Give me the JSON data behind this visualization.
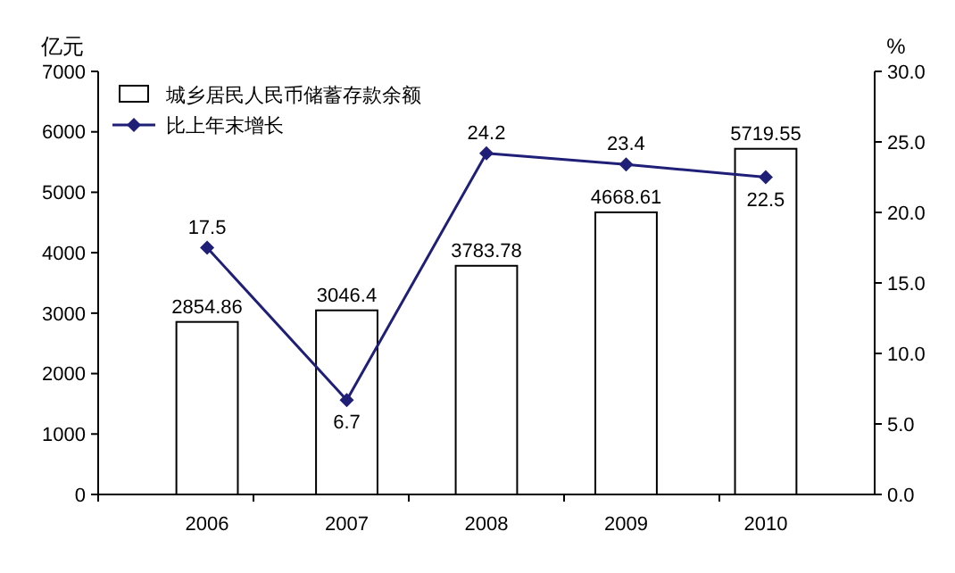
{
  "chart_data": {
    "type": "bar",
    "ylabel": "亿元",
    "y2label": "%",
    "categories": [
      "2006",
      "2007",
      "2008",
      "2009",
      "2010"
    ],
    "series": [
      {
        "name": "城乡居民人民币储蓄存款余额",
        "color": "#ffffff",
        "values": [
          2854.86,
          3046.4,
          3783.78,
          4668.61,
          5719.55
        ]
      },
      {
        "name": "比上年末增长",
        "type": "line",
        "axis": "y2",
        "color": "#1f1f78",
        "values": [
          17.5,
          6.7,
          24.2,
          23.4,
          22.5
        ]
      }
    ],
    "ylim": [
      0,
      7000
    ],
    "yticks": [
      0,
      1000,
      2000,
      3000,
      4000,
      5000,
      6000,
      7000
    ],
    "y2lim": [
      0,
      30
    ],
    "y2ticks": [
      {
        "value": 0,
        "label": "0.0"
      },
      {
        "value": 5,
        "label": "5.0"
      },
      {
        "value": 10,
        "label": "10.0"
      },
      {
        "value": 15,
        "label": "15.0"
      },
      {
        "value": 20,
        "label": "20.0"
      },
      {
        "value": 25,
        "label": "25.0"
      },
      {
        "value": 30,
        "label": "30.0"
      }
    ],
    "data_labels": true,
    "marker": "diamond",
    "legend": "top left",
    "grid": false
  }
}
